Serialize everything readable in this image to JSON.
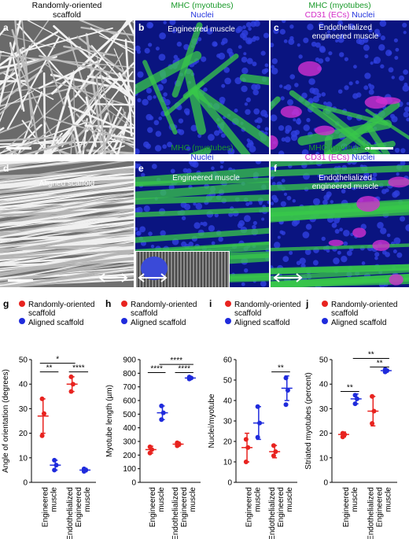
{
  "colors": {
    "red": "#e8231f",
    "blue": "#1f2bdc",
    "green": "#1a9a2a",
    "magenta": "#d42cc8"
  },
  "headers": {
    "a": {
      "line1": "Randomly-oriented",
      "line2": "scaffold"
    },
    "b": {
      "green": "MHC (myotubes)",
      "blue": "Nuclei"
    },
    "c": {
      "green": "MHC (myotubes)",
      "magenta": "CD31 (ECs)",
      "blue": "Nuclei"
    },
    "e": {
      "green": "MHC (myotubes)",
      "blue": "Nuclei"
    },
    "f": {
      "green": "MHC (myotubes)",
      "magenta": "CD31 (ECs)",
      "blue": "Nuclei"
    }
  },
  "panels": {
    "a": {
      "label": "a"
    },
    "b": {
      "label": "b",
      "title": "Engineered muscle"
    },
    "c": {
      "label": "c",
      "title1": "Endothelialized",
      "title2": "engineered muscle"
    },
    "d": {
      "label": "d",
      "title": "Aligned scaffold"
    },
    "e": {
      "label": "e",
      "title": "Engineered muscle"
    },
    "f": {
      "label": "f",
      "title1": "Endothelialized",
      "title2": "engineered muscle"
    }
  },
  "chart_data": [
    {
      "type": "scatter",
      "panel": "g",
      "ylabel": "Angle of orientation (degrees)",
      "ylim": [
        0,
        50
      ],
      "yticks": [
        0,
        10,
        20,
        30,
        40,
        50
      ],
      "legend": [
        "Randomly-oriented scaffold",
        "Aligned scaffold"
      ],
      "categories": [
        "Engineered muscle",
        "Endothelialized Engineered muscle"
      ],
      "series": [
        {
          "name": "Randomly-oriented scaffold",
          "color": "red",
          "groups": [
            {
              "mean": 27,
              "sd": 7,
              "points": [
                34,
                28,
                19
              ]
            },
            {
              "mean": 40,
              "sd": 3,
              "points": [
                43,
                40,
                37
              ]
            }
          ]
        },
        {
          "name": "Aligned scaffold",
          "color": "blue",
          "groups": [
            {
              "mean": 7,
              "sd": 2,
              "points": [
                9,
                7,
                5
              ]
            },
            {
              "mean": 5,
              "sd": 0.7,
              "points": [
                5.5,
                5,
                4.5
              ]
            }
          ]
        }
      ],
      "sig": [
        {
          "from": 0,
          "to": 1,
          "label": "**",
          "level": 45
        },
        {
          "from": 2,
          "to": 3,
          "label": "****",
          "level": 45
        },
        {
          "from": 0,
          "to": 2,
          "label": "*",
          "level": 48.5
        }
      ]
    },
    {
      "type": "scatter",
      "panel": "h",
      "ylabel": "Myotube length (µm)",
      "ylim": [
        0,
        900
      ],
      "yticks": [
        0,
        100,
        200,
        300,
        400,
        500,
        600,
        700,
        800,
        900
      ],
      "legend": [
        "Randomly-oriented scaffold",
        "Aligned scaffold"
      ],
      "categories": [
        "Engineered muscle",
        "Endothelialized Engineered muscle"
      ],
      "series": [
        {
          "name": "Randomly-oriented scaffold",
          "color": "red",
          "groups": [
            {
              "mean": 240,
              "sd": 25,
              "points": [
                260,
                240,
                215
              ]
            },
            {
              "mean": 280,
              "sd": 15,
              "points": [
                290,
                280,
                268
              ]
            }
          ]
        },
        {
          "name": "Aligned scaffold",
          "color": "blue",
          "groups": [
            {
              "mean": 510,
              "sd": 50,
              "points": [
                560,
                510,
                460
              ]
            },
            {
              "mean": 765,
              "sd": 8,
              "points": [
                772,
                765,
                758
              ]
            }
          ]
        }
      ],
      "sig": [
        {
          "from": 0,
          "to": 1,
          "label": "****",
          "level": 805
        },
        {
          "from": 2,
          "to": 3,
          "label": "****",
          "level": 805
        },
        {
          "from": 1,
          "to": 3,
          "label": "****",
          "level": 865
        }
      ]
    },
    {
      "type": "scatter",
      "panel": "i",
      "ylabel": "Nuclei/myotube",
      "ylim": [
        0,
        60
      ],
      "yticks": [
        0,
        10,
        20,
        30,
        40,
        50,
        60
      ],
      "legend": [
        "Randomly-oriented scaffold",
        "Aligned scaffold"
      ],
      "categories": [
        "Engineered muscle",
        "Endothelialized Engineered muscle"
      ],
      "series": [
        {
          "name": "Randomly-oriented scaffold",
          "color": "red",
          "groups": [
            {
              "mean": 17,
              "sd": 7,
              "points": [
                21,
                17,
                10
              ]
            },
            {
              "mean": 15,
              "sd": 3,
              "points": [
                18,
                15,
                13
              ]
            }
          ]
        },
        {
          "name": "Aligned scaffold",
          "color": "blue",
          "groups": [
            {
              "mean": 29,
              "sd": 8,
              "points": [
                37,
                29,
                22
              ]
            },
            {
              "mean": 46,
              "sd": 6,
              "points": [
                51,
                45,
                38
              ]
            }
          ]
        }
      ],
      "sig": [
        {
          "from": 2,
          "to": 3,
          "label": "**",
          "level": 54
        }
      ]
    },
    {
      "type": "scatter",
      "panel": "j",
      "ylabel": "Striated myotubes (percent)",
      "ylim": [
        0,
        50
      ],
      "yticks": [
        0,
        10,
        20,
        30,
        40,
        50
      ],
      "legend": [
        "Randomly-oriented scaffold",
        "Aligned scaffold"
      ],
      "categories": [
        "Engineered muscle",
        "Endothelialized Engineered muscle"
      ],
      "series": [
        {
          "name": "Randomly-oriented scaffold",
          "color": "red",
          "groups": [
            {
              "mean": 19.5,
              "sd": 1,
              "points": [
                20,
                19.5,
                18.5
              ]
            },
            {
              "mean": 29,
              "sd": 6,
              "points": [
                35,
                29,
                24
              ]
            }
          ]
        },
        {
          "name": "Aligned scaffold",
          "color": "blue",
          "groups": [
            {
              "mean": 34,
              "sd": 2,
              "points": [
                35.5,
                34,
                32
              ]
            },
            {
              "mean": 45.5,
              "sd": 0.6,
              "points": [
                46,
                45.5,
                45
              ]
            }
          ]
        }
      ],
      "sig": [
        {
          "from": 0,
          "to": 1,
          "label": "**",
          "level": 37
        },
        {
          "from": 2,
          "to": 3,
          "label": "**",
          "level": 47
        },
        {
          "from": 1,
          "to": 3,
          "label": "**",
          "level": 50.5
        }
      ]
    }
  ]
}
